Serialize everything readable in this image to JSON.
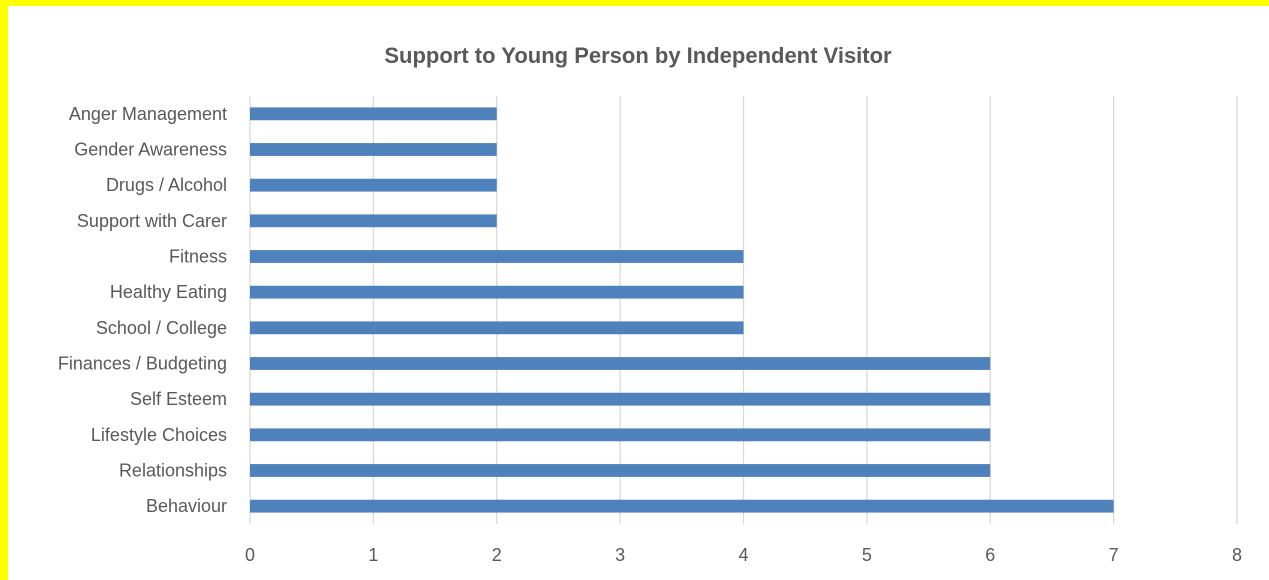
{
  "chart_data": {
    "type": "bar",
    "orientation": "horizontal",
    "title": "Support to Young Person by Independent Visitor",
    "xlabel": "",
    "ylabel": "",
    "categories": [
      "Anger Management",
      "Gender Awareness",
      "Drugs / Alcohol",
      "Support with Carer",
      "Fitness",
      "Healthy Eating",
      "School / College",
      "Finances / Budgeting",
      "Self Esteem",
      "Lifestyle Choices",
      "Relationships",
      "Behaviour"
    ],
    "values": [
      2,
      2,
      2,
      2,
      4,
      4,
      4,
      6,
      6,
      6,
      6,
      7
    ],
    "xlim": [
      0,
      8
    ],
    "xticks": [
      "0",
      "1",
      "2",
      "3",
      "4",
      "5",
      "6",
      "7",
      "8"
    ],
    "grid": "vertical",
    "legend": "none",
    "bar_color": "#4F81BD",
    "grid_color": "#D9D9D9",
    "frame_color": "#FFFF00"
  }
}
